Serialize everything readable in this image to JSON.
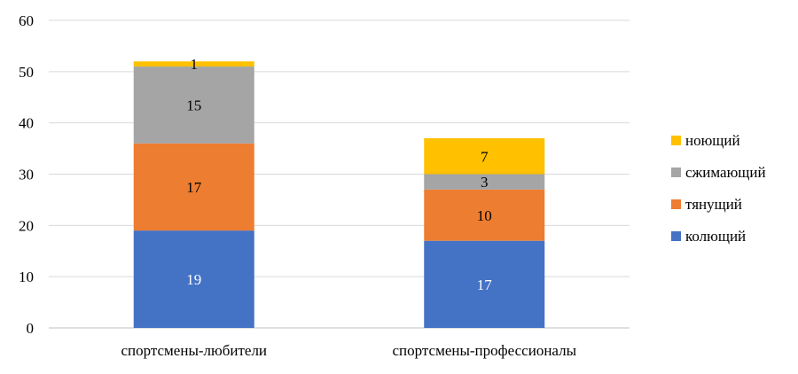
{
  "chart_data": {
    "type": "bar",
    "stacked": true,
    "categories": [
      "спортсмены-любители",
      "спортсмены-профессионалы"
    ],
    "series": [
      {
        "name": "колющий",
        "values": [
          19,
          17
        ],
        "color": "#4472C4",
        "label_color": "#FFFFFF"
      },
      {
        "name": "тянущий",
        "values": [
          17,
          10
        ],
        "color": "#ED7D31",
        "label_color": "#000000"
      },
      {
        "name": "сжимающий",
        "values": [
          15,
          3
        ],
        "color": "#A5A5A5",
        "label_color": "#000000"
      },
      {
        "name": "ноющий",
        "values": [
          1,
          7
        ],
        "color": "#FFC000",
        "label_color": "#000000"
      }
    ],
    "ylim": [
      0,
      60
    ],
    "yticks": [
      "0",
      "10",
      "20",
      "30",
      "40",
      "50",
      "60"
    ],
    "grid": true,
    "legend_position": "right"
  }
}
